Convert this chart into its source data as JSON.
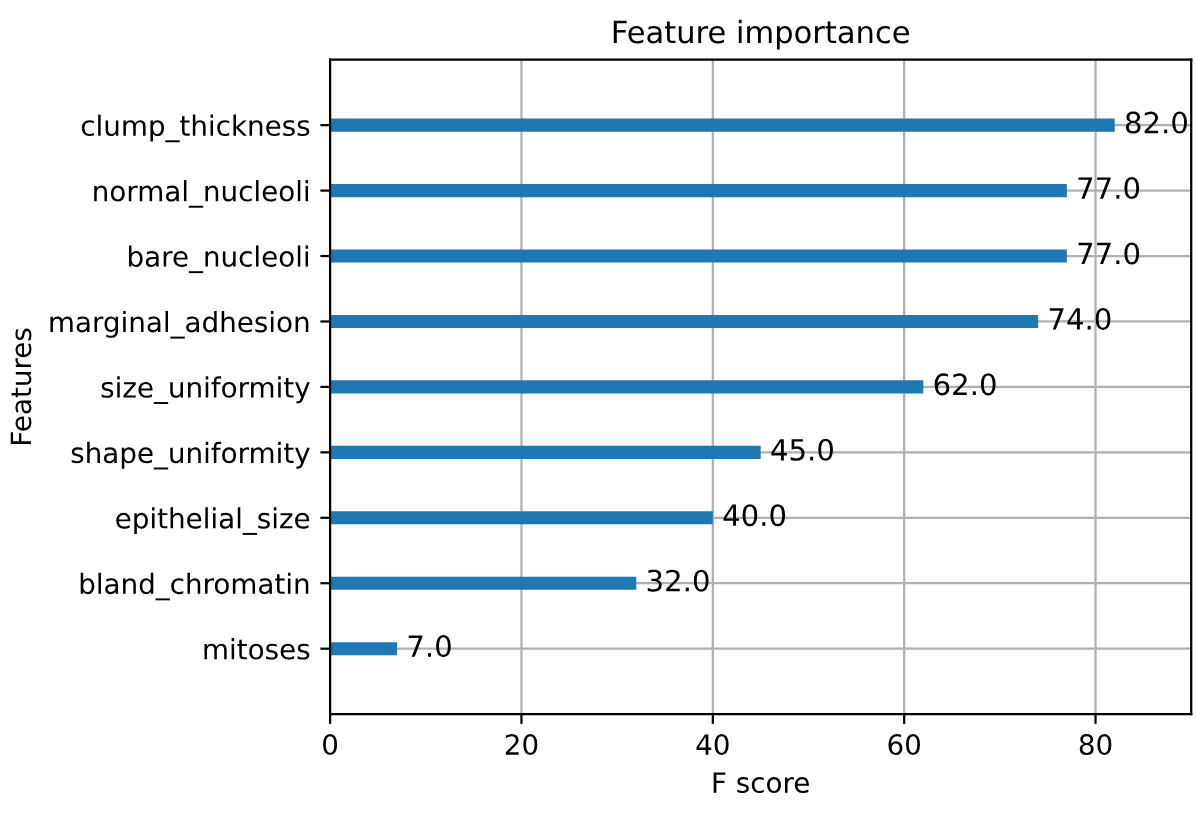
{
  "chart_data": {
    "type": "bar",
    "orientation": "horizontal",
    "title": "Feature importance",
    "xlabel": "F score",
    "ylabel": "Features",
    "categories": [
      "clump_thickness",
      "normal_nucleoli",
      "bare_nucleoli",
      "marginal_adhesion",
      "size_uniformity",
      "shape_uniformity",
      "epithelial_size",
      "bland_chromatin",
      "mitoses"
    ],
    "values": [
      82,
      77,
      77,
      74,
      62,
      45,
      40,
      32,
      7
    ],
    "value_labels": [
      "82.0",
      "77.0",
      "77.0",
      "74.0",
      "62.0",
      "45.0",
      "40.0",
      "32.0",
      "7.0"
    ],
    "color": "#1f77b4",
    "xlim": [
      0,
      90
    ],
    "xticks": [
      0,
      20,
      40,
      60,
      80
    ],
    "grid": true
  }
}
